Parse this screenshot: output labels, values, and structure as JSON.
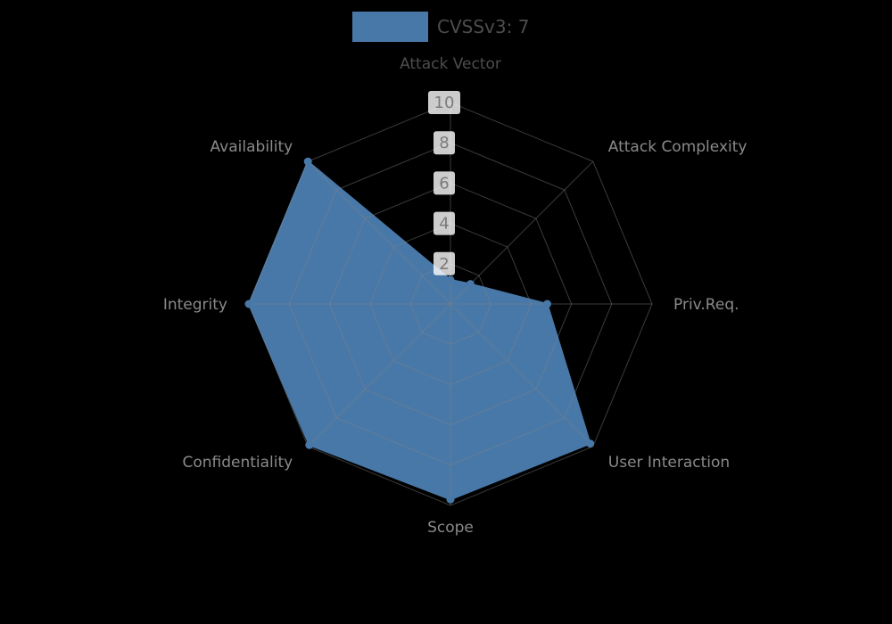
{
  "page": {
    "background_color": "#000000"
  },
  "legend": {
    "label": "CVSSv3: 7",
    "swatch_color": "#4878a8",
    "text_color": "#4d4d4d"
  },
  "chart_data": {
    "type": "radar",
    "title": "",
    "categories": [
      "Attack Vector",
      "Attack Complexity",
      "Priv.Req.",
      "User Interaction",
      "Scope",
      "Confidentiality",
      "Integrity",
      "Availability"
    ],
    "series": [
      {
        "name": "CVSSv3: 7",
        "color": "#4878a8",
        "values": [
          1.2,
          1.4,
          4.8,
          9.8,
          9.7,
          9.9,
          10,
          10
        ]
      }
    ],
    "radial_axis": {
      "ticks": [
        2,
        4,
        6,
        8,
        10
      ],
      "min": 0,
      "max": 10,
      "tick_color": "#7a7a7a",
      "tick_box_color": "#ffffff"
    },
    "grid": true,
    "grid_color": "#828282",
    "category_label_color": "#8a8a8a",
    "highlighted_category": "Attack Vector",
    "highlighted_category_color": "#4d4d4d",
    "legend_position": "top"
  }
}
